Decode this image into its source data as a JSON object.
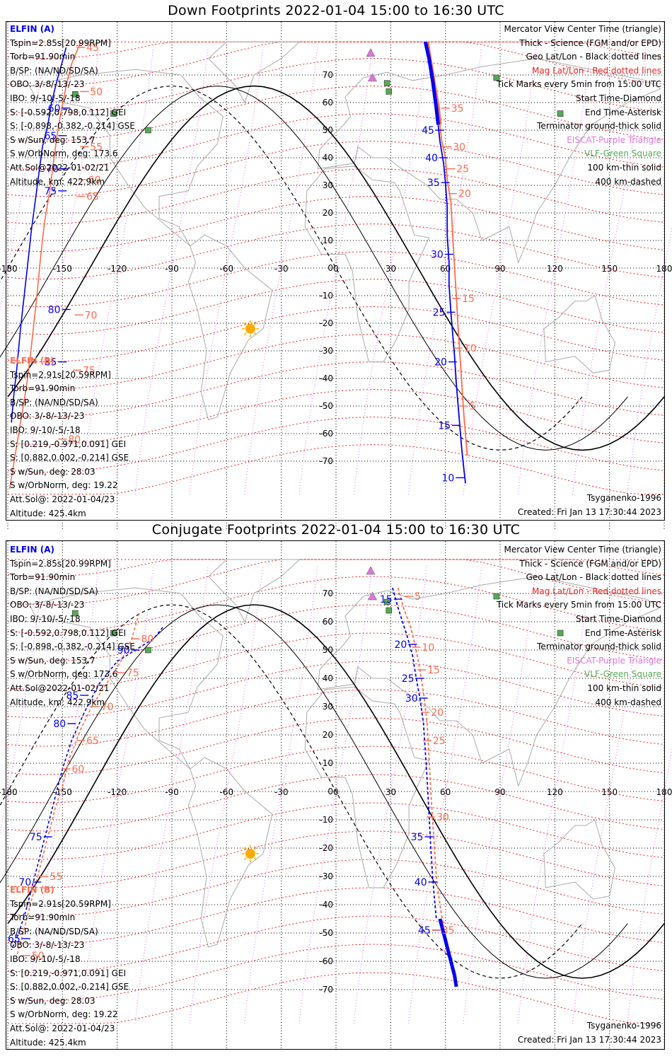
{
  "colors": {
    "elfin_a": "#0000ee",
    "elfin_b": "#ff6a4a",
    "geo_grid": "#000000",
    "mag_grid": "#ee2222",
    "mag_lon": "#ee66ee",
    "coast": "#aaaaaa",
    "eiscat": "#dd77dd",
    "vlf": "#55aa55",
    "sun": "#ffaa00"
  },
  "panels": [
    {
      "title": "Down Footprints 2022-01-04 15:00 to 16:30 UTC",
      "elfin_a": {
        "header": "ELFIN (A)",
        "lines": [
          "Tspin=2.85s[20.99RPM]",
          "Torb=91.90min",
          "B/SP: (NA/ND/SD/SA)",
          "OBO: 3/-8/-13/-23",
          "IBO: 9/-10/-5/-18",
          "S: [-0.592,0.798,0.112] GEI",
          "S: [-0.898,-0.382,-0.214] GSE",
          "S w/Sun, deg: 153.7",
          "S w/OrbNorm, deg: 173.6",
          "Att.Sol@2022-01-02/21",
          "Altitude, km: 422.9km"
        ]
      },
      "elfin_b": {
        "header": "ELFIN (B)",
        "lines": [
          "Tspin=2.91s[20.59RPM]",
          "Torb=91.90min",
          "B/SP: (NA/ND/SD/SA)",
          "OBO: 3/-8/-13/-23",
          "IBO: 9/-10/-5/-18",
          "S: [0.219,-0.971,0.091] GEI",
          "S: [0.882,0.002,-0.214] GSE",
          "S w/Sun, deg: 28.03",
          "S w/OrbNorm, deg: 19.22",
          "Att.Sol@: 2022-01-04/23",
          "Altitude: 425.4km"
        ]
      },
      "legend": [
        {
          "text": "Mercator View Center Time (triangle)",
          "color": "#000000"
        },
        {
          "text": "Thick - Science (FGM and/or EPD)",
          "color": "#000000"
        },
        {
          "text": "Geo Lat/Lon - Black dotted lines",
          "color": "#000000"
        },
        {
          "text": "Mag Lat/Lon - Red dotted lines",
          "color": "#ee2222"
        },
        {
          "text": "Tick Marks every 5min from 15:00 UTC",
          "color": "#000000"
        },
        {
          "text": "Start Time-Diamond",
          "color": "#000000"
        },
        {
          "text": "End Time-Asterisk",
          "color": "#000000"
        },
        {
          "text": "Terminator ground-thick solid",
          "color": "#000000"
        },
        {
          "text": "EISCAT-Purple Triangle",
          "color": "#dd77dd"
        },
        {
          "text": "VLF-Green Square",
          "color": "#55aa55"
        },
        {
          "text": "100 km-thin solid",
          "color": "#000000"
        },
        {
          "text": "400 km-dashed",
          "color": "#000000"
        }
      ],
      "model": "Tsyganenko-1996",
      "created": "Created: Fri Jan 13 17:30:44 2023"
    },
    {
      "title": "Conjugate Footprints 2022-01-04 15:00 to 16:30 UTC",
      "elfin_a": {
        "header": "ELFIN (A)",
        "lines": [
          "Tspin=2.85s[20.99RPM]",
          "Torb=91.90min",
          "B/SP: (NA/ND/SD/SA)",
          "OBO: 3/-8/-13/-23",
          "IBO: 9/-10/-5/-18",
          "S: [-0.592,0.798,0.112] GEI",
          "S: [-0.898,-0.382,-0.214] GSE",
          "S w/Sun, deg: 153.7",
          "S w/OrbNorm, deg: 173.6",
          "Att.Sol@2022-01-02/21",
          "Altitude, km: 422.9km"
        ]
      },
      "elfin_b": {
        "header": "ELFIN (B)",
        "lines": [
          "Tspin=2.91s[20.59RPM]",
          "Torb=91.90min",
          "B/SP: (NA/ND/SD/SA)",
          "OBO: 3/-8/-13/-23",
          "IBO: 9/-10/-5/-18",
          "S: [0.219,-0.971,0.091] GEI",
          "S: [0.882,0.002,-0.214] GSE",
          "S w/Sun, deg: 28.03",
          "S w/OrbNorm, deg: 19.22",
          "Att.Sol@: 2022-01-04/23",
          "Altitude: 425.4km"
        ]
      },
      "legend": [
        {
          "text": "Mercator View Center Time (triangle)",
          "color": "#000000"
        },
        {
          "text": "Thick - Science (FGM and/or EPD)",
          "color": "#000000"
        },
        {
          "text": "Geo Lat/Lon - Black dotted lines",
          "color": "#000000"
        },
        {
          "text": "Mag Lat/Lon - Red dotted lines",
          "color": "#ee2222"
        },
        {
          "text": "Tick Marks every 5min from 15:00 UTC",
          "color": "#000000"
        },
        {
          "text": "Start Time-Diamond",
          "color": "#000000"
        },
        {
          "text": "End Time-Asterisk",
          "color": "#000000"
        },
        {
          "text": "Terminator ground-thick solid",
          "color": "#000000"
        },
        {
          "text": "EISCAT-Purple Triangle",
          "color": "#dd77dd"
        },
        {
          "text": "VLF-Green Square",
          "color": "#55aa55"
        },
        {
          "text": "100 km-thin solid",
          "color": "#000000"
        },
        {
          "text": "400 km-dashed",
          "color": "#000000"
        }
      ],
      "model": "Tsyganenko-1996",
      "created": "Created: Fri Jan 13 17:30:44 2023"
    }
  ],
  "lon_ticks": [
    "-180",
    "-150",
    "-120",
    "-90",
    "-60",
    "-30",
    "0",
    "30",
    "60",
    "90",
    "120",
    "150",
    "180"
  ],
  "lat_ticks": [
    "70",
    "60",
    "50",
    "40",
    "30",
    "20",
    "10",
    "0",
    "-10",
    "-20",
    "-30",
    "-40",
    "-50",
    "-60",
    "-70"
  ],
  "eiscat_sites": [
    {
      "lon": 19,
      "lat": 78
    },
    {
      "lon": 20,
      "lat": 69
    }
  ],
  "vlf_sites": [
    {
      "lon": 28,
      "lat": 67
    },
    {
      "lon": 29,
      "lat": 64
    },
    {
      "lon": 88,
      "lat": 69
    },
    {
      "lon": -143,
      "lat": 63
    },
    {
      "lon": -122,
      "lat": 56
    },
    {
      "lon": -103,
      "lat": 50
    },
    {
      "lon": 123,
      "lat": 56
    }
  ],
  "sun": {
    "lon": -47,
    "lat": -22
  },
  "down": {
    "a_science": [
      [
        49,
        82
      ],
      [
        51,
        76
      ],
      [
        53,
        68
      ],
      [
        55,
        58
      ],
      [
        56,
        52
      ]
    ],
    "a_track": [
      [
        56,
        52
      ],
      [
        57,
        46
      ],
      [
        59,
        38
      ],
      [
        60,
        31
      ],
      [
        61,
        22
      ],
      [
        61,
        12
      ],
      [
        62,
        2
      ],
      [
        62,
        -6
      ],
      [
        63,
        -16
      ],
      [
        64,
        -24
      ],
      [
        65,
        -32
      ],
      [
        66,
        -42
      ],
      [
        67,
        -50
      ],
      [
        68,
        -58
      ],
      [
        69,
        -66
      ],
      [
        70,
        -72
      ],
      [
        71,
        -78
      ]
    ],
    "a_ticks": [
      {
        "lon": 57,
        "lat": 50,
        "label": "45"
      },
      {
        "lon": 59,
        "lat": 40,
        "label": "40"
      },
      {
        "lon": 60,
        "lat": 31,
        "label": "35"
      },
      {
        "lon": 62,
        "lat": 5,
        "label": "30"
      },
      {
        "lon": 63,
        "lat": -16,
        "label": "25"
      },
      {
        "lon": 64,
        "lat": -34,
        "label": "20"
      },
      {
        "lon": 66,
        "lat": -57,
        "label": "15"
      },
      {
        "lon": 68,
        "lat": -76,
        "label": "10"
      }
    ],
    "b_science": [
      [
        50,
        82
      ],
      [
        52,
        74
      ],
      [
        54,
        66
      ],
      [
        56,
        58
      ],
      [
        57,
        52
      ]
    ],
    "b_track": [
      [
        57,
        52
      ],
      [
        58,
        46
      ],
      [
        60,
        40
      ],
      [
        61,
        32
      ],
      [
        63,
        24
      ],
      [
        64,
        12
      ],
      [
        65,
        0
      ],
      [
        66,
        -10
      ],
      [
        67,
        -22
      ],
      [
        68,
        -32
      ],
      [
        69,
        -42
      ],
      [
        70,
        -52
      ],
      [
        71,
        -60
      ],
      [
        72,
        -68
      ]
    ],
    "b_ticks": [
      {
        "lon": 60,
        "lat": 58,
        "label": "35"
      },
      {
        "lon": 61,
        "lat": 44,
        "label": "30"
      },
      {
        "lon": 63,
        "lat": 36,
        "label": "25"
      },
      {
        "lon": 64,
        "lat": 27,
        "label": "20"
      },
      {
        "lon": 66,
        "lat": -11,
        "label": "15"
      },
      {
        "lon": 67,
        "lat": -29,
        "label": "10"
      },
      {
        "lon": 70,
        "lat": -50,
        "label": "5"
      }
    ],
    "a_pass2": [
      [
        -148,
        80
      ],
      [
        -150,
        75
      ],
      [
        -153,
        68
      ],
      [
        -156,
        60
      ],
      [
        -158,
        52
      ],
      [
        -161,
        44
      ],
      [
        -163,
        34
      ],
      [
        -165,
        24
      ],
      [
        -167,
        14
      ],
      [
        -169,
        2
      ],
      [
        -171,
        -10
      ],
      [
        -173,
        -22
      ],
      [
        -175,
        -36
      ],
      [
        -177,
        -48
      ],
      [
        -178,
        -56
      ]
    ],
    "a2_ticks": [
      {
        "lon": -148,
        "lat": 58,
        "label": "60"
      },
      {
        "lon": -150,
        "lat": 48,
        "label": "65"
      },
      {
        "lon": -149,
        "lat": 36,
        "label": "70"
      },
      {
        "lon": -150,
        "lat": 28,
        "label": "75"
      },
      {
        "lon": -148,
        "lat": -15,
        "label": "80"
      },
      {
        "lon": -150,
        "lat": -34,
        "label": "85"
      }
    ],
    "b_pass2": [
      [
        -140,
        82
      ],
      [
        -145,
        74
      ],
      [
        -148,
        66
      ],
      [
        -151,
        56
      ],
      [
        -153,
        48
      ],
      [
        -155,
        38
      ],
      [
        -157,
        28
      ],
      [
        -160,
        16
      ],
      [
        -162,
        4
      ],
      [
        -164,
        -10
      ],
      [
        -166,
        -22
      ],
      [
        -168,
        -34
      ],
      [
        -170,
        -44
      ],
      [
        -173,
        -56
      ],
      [
        -176,
        -68
      ],
      [
        -179,
        -80
      ]
    ],
    "b2_ticks": [
      {
        "lon": -140,
        "lat": 80,
        "label": "45"
      },
      {
        "lon": -138,
        "lat": 64,
        "label": "50"
      },
      {
        "lon": -138,
        "lat": 44,
        "label": "55"
      },
      {
        "lon": -139,
        "lat": 32,
        "label": "60"
      },
      {
        "lon": -140,
        "lat": 26,
        "label": "65"
      },
      {
        "lon": -141,
        "lat": -17,
        "label": "70"
      },
      {
        "lon": -142,
        "lat": -37,
        "label": "75"
      },
      {
        "lon": -150,
        "lat": -62,
        "label": "80"
      }
    ]
  },
  "conjugate": {
    "a_science": [
      [
        57,
        -45
      ],
      [
        59,
        -50
      ],
      [
        61,
        -55
      ],
      [
        63,
        -60
      ],
      [
        65,
        -65
      ],
      [
        66,
        -69
      ]
    ],
    "a_track": [
      [
        31,
        72
      ],
      [
        34,
        65
      ],
      [
        39,
        55
      ],
      [
        42,
        48
      ],
      [
        44,
        40
      ],
      [
        46,
        33
      ],
      [
        48,
        24
      ],
      [
        49,
        14
      ],
      [
        50,
        4
      ],
      [
        51,
        -8
      ],
      [
        52,
        -20
      ],
      [
        53,
        -30
      ],
      [
        54,
        -38
      ],
      [
        55,
        -45
      ]
    ],
    "a_ticks": [
      {
        "lon": 34,
        "lat": 68,
        "label": "15"
      },
      {
        "lon": 42,
        "lat": 52,
        "label": "20"
      },
      {
        "lon": 46,
        "lat": 40,
        "label": "25"
      },
      {
        "lon": 48,
        "lat": 33,
        "label": "30"
      },
      {
        "lon": 51,
        "lat": -16,
        "label": "35"
      },
      {
        "lon": 53,
        "lat": -32,
        "label": "40"
      },
      {
        "lon": 55,
        "lat": -49,
        "label": "45"
      }
    ],
    "b_track": [
      [
        34,
        72
      ],
      [
        37,
        65
      ],
      [
        41,
        58
      ],
      [
        44,
        50
      ],
      [
        46,
        43
      ],
      [
        48,
        35
      ],
      [
        50,
        24
      ],
      [
        51,
        12
      ],
      [
        52,
        0
      ],
      [
        53,
        -10
      ],
      [
        54,
        -20
      ],
      [
        55,
        -30
      ],
      [
        57,
        -40
      ],
      [
        59,
        -48
      ]
    ],
    "b_ticks": [
      {
        "lon": 40,
        "lat": 69,
        "label": "5"
      },
      {
        "lon": 44,
        "lat": 51,
        "label": "10"
      },
      {
        "lon": 47,
        "lat": 43,
        "label": "15"
      },
      {
        "lon": 49,
        "lat": 28,
        "label": "20"
      },
      {
        "lon": 50,
        "lat": 18,
        "label": "25"
      },
      {
        "lon": 52,
        "lat": -9,
        "label": "30"
      },
      {
        "lon": 55,
        "lat": -49,
        "label": "35"
      }
    ],
    "a_pass2": [
      [
        -95,
        58
      ],
      [
        -100,
        54
      ],
      [
        -110,
        50
      ],
      [
        -120,
        46
      ],
      [
        -130,
        38
      ],
      [
        -138,
        28
      ],
      [
        -145,
        18
      ],
      [
        -150,
        8
      ],
      [
        -154,
        -2
      ],
      [
        -158,
        -12
      ],
      [
        -162,
        -22
      ],
      [
        -166,
        -32
      ],
      [
        -170,
        -42
      ],
      [
        -174,
        -50
      ],
      [
        -178,
        -56
      ]
    ],
    "a2_ticks": [
      {
        "lon": -110,
        "lat": 50,
        "label": "90"
      },
      {
        "lon": -138,
        "lat": 34,
        "label": "85"
      },
      {
        "lon": -145,
        "lat": 24,
        "label": "80"
      },
      {
        "lon": -158,
        "lat": -16,
        "label": "75"
      },
      {
        "lon": -164,
        "lat": -32,
        "label": "70"
      },
      {
        "lon": -170,
        "lat": -52,
        "label": "65"
      }
    ],
    "b_pass2": [
      [
        -108,
        63
      ],
      [
        -112,
        54
      ],
      [
        -118,
        46
      ],
      [
        -126,
        38
      ],
      [
        -134,
        30
      ],
      [
        -140,
        22
      ],
      [
        -146,
        12
      ],
      [
        -150,
        2
      ],
      [
        -154,
        -6
      ],
      [
        -158,
        -16
      ],
      [
        -162,
        -26
      ],
      [
        -166,
        -36
      ],
      [
        -170,
        -46
      ],
      [
        -175,
        -58
      ]
    ],
    "b2_ticks": [
      {
        "lon": -110,
        "lat": 54,
        "label": "80"
      },
      {
        "lon": -118,
        "lat": 42,
        "label": "75"
      },
      {
        "lon": -132,
        "lat": 30,
        "label": "70"
      },
      {
        "lon": -140,
        "lat": 18,
        "label": "65"
      },
      {
        "lon": -148,
        "lat": 8,
        "label": "60"
      },
      {
        "lon": -160,
        "lat": -30,
        "label": "55"
      },
      {
        "lon": -170,
        "lat": -58,
        "label": "50"
      }
    ]
  }
}
